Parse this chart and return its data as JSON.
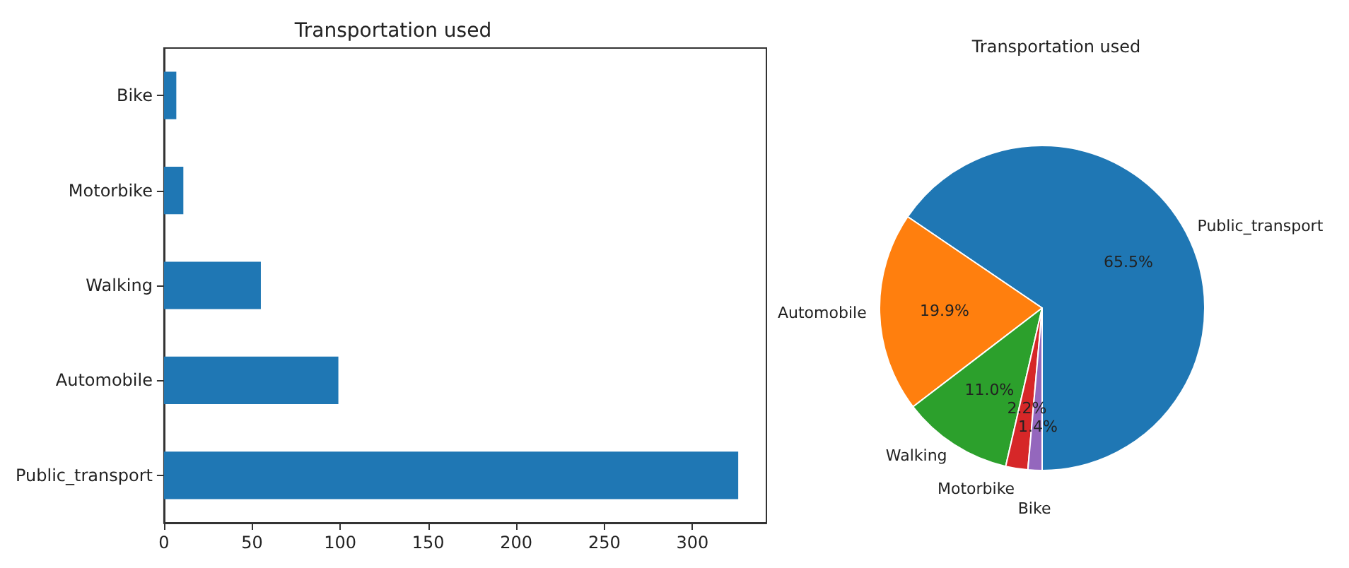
{
  "chart_data": [
    {
      "type": "bar",
      "title": "Transportation used",
      "orientation": "horizontal",
      "categories": [
        "Bike",
        "Motorbike",
        "Walking",
        "Automobile",
        "Public_transport"
      ],
      "values": [
        7,
        11,
        55,
        99,
        326
      ],
      "color": "#1f77b4",
      "xlim": [
        0,
        342
      ],
      "xticks": [
        0,
        50,
        100,
        150,
        200,
        250,
        300
      ],
      "grid": false
    },
    {
      "type": "pie",
      "title": "Transportation used",
      "categories": [
        "Public_transport",
        "Automobile",
        "Walking",
        "Motorbike",
        "Bike"
      ],
      "values": [
        65.5,
        19.9,
        11.0,
        2.2,
        1.4
      ],
      "colors": [
        "#1f77b4",
        "#ff7f0e",
        "#2ca02c",
        "#d62728",
        "#9467bd"
      ],
      "value_labels": [
        "65.5%",
        "19.9%",
        "11.0%",
        "2.2%",
        "1.4%"
      ]
    }
  ]
}
